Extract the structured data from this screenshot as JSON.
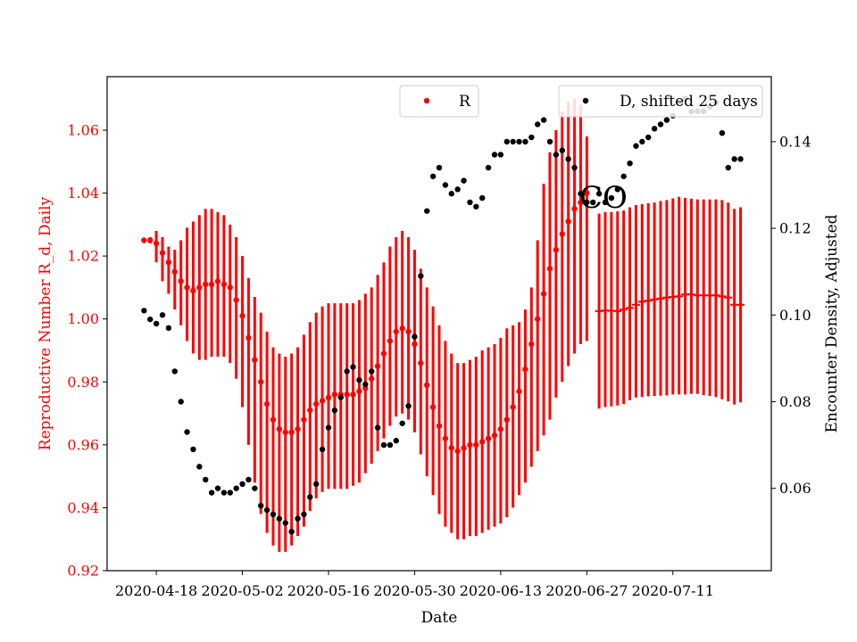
{
  "chart_data": {
    "type": "scatter",
    "xlabel": "Date",
    "ylabel_left": "Reproductive Number R_d, Daily",
    "ylabel_right": "Encounter Density, Adjusted",
    "annotation": "CO",
    "x_tick_labels": [
      "2020-04-18",
      "2020-05-02",
      "2020-05-16",
      "2020-05-30",
      "2020-06-13",
      "2020-06-27",
      "2020-07-11"
    ],
    "x_ticks": [
      "2020-04-18",
      "2020-05-02",
      "2020-05-16",
      "2020-05-30",
      "2020-06-13",
      "2020-06-27",
      "2020-07-11"
    ],
    "xlim": [
      "2020-04-10",
      "2020-07-27"
    ],
    "ylim_left": [
      0.92,
      1.077
    ],
    "yticks_left": [
      "0.92",
      "0.94",
      "0.96",
      "0.98",
      "1.00",
      "1.02",
      "1.04",
      "1.06"
    ],
    "ylim_right": [
      0.041,
      0.155
    ],
    "yticks_right": [
      "0.06",
      "0.08",
      "0.10",
      "0.12",
      "0.14"
    ],
    "colors": {
      "R": "#ff0000",
      "D": "#000000",
      "axis": "#000000"
    },
    "legend_placement": "top-right",
    "series": [
      {
        "name": "R",
        "axis": "left",
        "marker": "dot",
        "x": [
          "2020-04-16",
          "2020-04-17",
          "2020-04-18",
          "2020-04-19",
          "2020-04-20",
          "2020-04-21",
          "2020-04-22",
          "2020-04-23",
          "2020-04-24",
          "2020-04-25",
          "2020-04-26",
          "2020-04-27",
          "2020-04-28",
          "2020-04-29",
          "2020-04-30",
          "2020-05-01",
          "2020-05-02",
          "2020-05-03",
          "2020-05-04",
          "2020-05-05",
          "2020-05-06",
          "2020-05-07",
          "2020-05-08",
          "2020-05-09",
          "2020-05-10",
          "2020-05-11",
          "2020-05-12",
          "2020-05-13",
          "2020-05-14",
          "2020-05-15",
          "2020-05-16",
          "2020-05-17",
          "2020-05-18",
          "2020-05-19",
          "2020-05-20",
          "2020-05-21",
          "2020-05-22",
          "2020-05-23",
          "2020-05-24",
          "2020-05-25",
          "2020-05-26",
          "2020-05-27",
          "2020-05-28",
          "2020-05-29",
          "2020-05-30",
          "2020-05-31",
          "2020-06-01",
          "2020-06-02",
          "2020-06-03",
          "2020-06-04",
          "2020-06-05",
          "2020-06-06",
          "2020-06-07",
          "2020-06-08",
          "2020-06-09",
          "2020-06-10",
          "2020-06-11",
          "2020-06-12",
          "2020-06-13",
          "2020-06-14",
          "2020-06-15",
          "2020-06-16",
          "2020-06-17",
          "2020-06-18",
          "2020-06-19",
          "2020-06-20",
          "2020-06-21",
          "2020-06-22",
          "2020-06-23",
          "2020-06-24",
          "2020-06-25",
          "2020-06-26",
          "2020-06-27"
        ],
        "y": [
          1.025,
          1.025,
          1.024,
          1.021,
          1.018,
          1.015,
          1.012,
          1.01,
          1.009,
          1.01,
          1.011,
          1.011,
          1.012,
          1.011,
          1.01,
          1.006,
          1.001,
          0.994,
          0.987,
          0.98,
          0.973,
          0.968,
          0.965,
          0.964,
          0.964,
          0.965,
          0.968,
          0.971,
          0.973,
          0.974,
          0.975,
          0.976,
          0.976,
          0.976,
          0.976,
          0.977,
          0.978,
          0.981,
          0.985,
          0.989,
          0.993,
          0.996,
          0.997,
          0.996,
          0.992,
          0.986,
          0.979,
          0.972,
          0.966,
          0.962,
          0.959,
          0.958,
          0.959,
          0.96,
          0.96,
          0.961,
          0.962,
          0.963,
          0.965,
          0.968,
          0.972,
          0.977,
          0.984,
          0.992,
          1.0,
          1.008,
          1.016,
          1.022,
          1.027,
          1.031,
          1.035,
          1.037,
          1.04
        ],
        "err_low": [
          1.025,
          1.024,
          1.018,
          1.012,
          1.008,
          1.003,
          0.998,
          0.993,
          0.989,
          0.987,
          0.987,
          0.988,
          0.988,
          0.988,
          0.986,
          0.981,
          0.972,
          0.96,
          0.948,
          0.938,
          0.932,
          0.928,
          0.926,
          0.926,
          0.928,
          0.931,
          0.934,
          0.939,
          0.943,
          0.945,
          0.946,
          0.946,
          0.946,
          0.946,
          0.947,
          0.948,
          0.951,
          0.954,
          0.958,
          0.962,
          0.966,
          0.969,
          0.97,
          0.968,
          0.964,
          0.957,
          0.95,
          0.944,
          0.938,
          0.934,
          0.932,
          0.93,
          0.93,
          0.931,
          0.931,
          0.932,
          0.933,
          0.934,
          0.935,
          0.937,
          0.94,
          0.944,
          0.948,
          0.953,
          0.958,
          0.963,
          0.968,
          0.975,
          0.98,
          0.985,
          0.989,
          0.992,
          0.993
        ],
        "err_high": [
          1.025,
          1.026,
          1.028,
          1.026,
          1.023,
          1.022,
          1.025,
          1.029,
          1.031,
          1.033,
          1.035,
          1.035,
          1.034,
          1.033,
          1.03,
          1.026,
          1.02,
          1.013,
          1.007,
          1.002,
          0.996,
          0.991,
          0.989,
          0.988,
          0.989,
          0.991,
          0.995,
          0.999,
          1.002,
          1.004,
          1.005,
          1.005,
          1.005,
          1.005,
          1.005,
          1.006,
          1.008,
          1.01,
          1.014,
          1.018,
          1.023,
          1.026,
          1.028,
          1.026,
          1.022,
          1.016,
          1.01,
          1.004,
          0.998,
          0.993,
          0.989,
          0.986,
          0.986,
          0.987,
          0.988,
          0.99,
          0.991,
          0.992,
          0.994,
          0.997,
          0.998,
          0.999,
          1.003,
          1.01,
          1.025,
          1.043,
          1.053,
          1.06,
          1.066,
          1.069,
          1.07,
          1.068,
          1.058
        ]
      },
      {
        "name": "R",
        "axis": "left",
        "marker": "bar",
        "x": [
          "2020-06-29",
          "2020-06-30",
          "2020-07-01",
          "2020-07-02",
          "2020-07-03",
          "2020-07-04",
          "2020-07-05",
          "2020-07-06",
          "2020-07-07",
          "2020-07-08",
          "2020-07-09",
          "2020-07-10",
          "2020-07-11",
          "2020-07-12",
          "2020-07-13",
          "2020-07-14",
          "2020-07-15",
          "2020-07-16",
          "2020-07-17",
          "2020-07-18",
          "2020-07-19",
          "2020-07-20",
          "2020-07-21",
          "2020-07-22"
        ],
        "y": [
          1.0025,
          1.0027,
          1.0026,
          1.0025,
          1.003,
          1.0035,
          1.0045,
          1.0055,
          1.0058,
          1.0062,
          1.0065,
          1.0068,
          1.007,
          1.0072,
          1.0078,
          1.0078,
          1.0075,
          1.0075,
          1.0075,
          1.0075,
          1.0072,
          1.0068,
          1.0045,
          1.0045
        ],
        "err_low": [
          0.9715,
          0.972,
          0.9722,
          0.9725,
          0.973,
          0.9742,
          0.975,
          0.9752,
          0.9754,
          0.9755,
          0.9756,
          0.9757,
          0.976,
          0.976,
          0.976,
          0.9762,
          0.9762,
          0.9758,
          0.9755,
          0.9752,
          0.9745,
          0.9738,
          0.9728,
          0.9735
        ],
        "err_high": [
          1.0335,
          1.034,
          1.034,
          1.0342,
          1.0345,
          1.0355,
          1.0362,
          1.0365,
          1.0368,
          1.037,
          1.0375,
          1.0378,
          1.0383,
          1.0388,
          1.0385,
          1.0382,
          1.038,
          1.038,
          1.038,
          1.038,
          1.0378,
          1.037,
          1.035,
          1.0355
        ]
      },
      {
        "name": "D, shifted 25 days",
        "axis": "right",
        "marker": "dot",
        "x": [
          "2020-04-16",
          "2020-04-17",
          "2020-04-18",
          "2020-04-19",
          "2020-04-20",
          "2020-04-21",
          "2020-04-22",
          "2020-04-23",
          "2020-04-24",
          "2020-04-25",
          "2020-04-26",
          "2020-04-27",
          "2020-04-28",
          "2020-04-29",
          "2020-04-30",
          "2020-05-01",
          "2020-05-02",
          "2020-05-03",
          "2020-05-04",
          "2020-05-05",
          "2020-05-06",
          "2020-05-07",
          "2020-05-08",
          "2020-05-09",
          "2020-05-10",
          "2020-05-11",
          "2020-05-12",
          "2020-05-13",
          "2020-05-14",
          "2020-05-15",
          "2020-05-16",
          "2020-05-17",
          "2020-05-18",
          "2020-05-19",
          "2020-05-20",
          "2020-05-21",
          "2020-05-22",
          "2020-05-23",
          "2020-05-24",
          "2020-05-25",
          "2020-05-26",
          "2020-05-27",
          "2020-05-28",
          "2020-05-29",
          "2020-05-30",
          "2020-05-31",
          "2020-06-01",
          "2020-06-02",
          "2020-06-03",
          "2020-06-04",
          "2020-06-05",
          "2020-06-06",
          "2020-06-07",
          "2020-06-08",
          "2020-06-09",
          "2020-06-10",
          "2020-06-11",
          "2020-06-12",
          "2020-06-13",
          "2020-06-14",
          "2020-06-15",
          "2020-06-16",
          "2020-06-17",
          "2020-06-18",
          "2020-06-19",
          "2020-06-20",
          "2020-06-21",
          "2020-06-22",
          "2020-06-23",
          "2020-06-24",
          "2020-06-25",
          "2020-06-26",
          "2020-06-27",
          "2020-06-28",
          "2020-06-29",
          "2020-06-30",
          "2020-07-01",
          "2020-07-02",
          "2020-07-03",
          "2020-07-04",
          "2020-07-05",
          "2020-07-06",
          "2020-07-07",
          "2020-07-08",
          "2020-07-09",
          "2020-07-10",
          "2020-07-11",
          "2020-07-12",
          "2020-07-13",
          "2020-07-14",
          "2020-07-15",
          "2020-07-16",
          "2020-07-17",
          "2020-07-18",
          "2020-07-19",
          "2020-07-20",
          "2020-07-21",
          "2020-07-22"
        ],
        "y": [
          0.101,
          0.099,
          0.098,
          0.1,
          0.097,
          0.087,
          0.08,
          0.073,
          0.069,
          0.065,
          0.062,
          0.059,
          0.06,
          0.059,
          0.059,
          0.06,
          0.061,
          0.062,
          0.06,
          0.056,
          0.055,
          0.054,
          0.053,
          0.052,
          0.05,
          0.053,
          0.054,
          0.058,
          0.061,
          0.069,
          0.074,
          0.078,
          0.081,
          0.087,
          0.088,
          0.085,
          0.084,
          0.087,
          0.074,
          0.07,
          0.07,
          0.071,
          0.075,
          0.079,
          0.095,
          0.109,
          0.124,
          0.132,
          0.134,
          0.13,
          0.128,
          0.129,
          0.131,
          0.126,
          0.125,
          0.127,
          0.134,
          0.137,
          0.137,
          0.14,
          0.14,
          0.14,
          0.14,
          0.141,
          0.144,
          0.145,
          0.14,
          0.137,
          0.138,
          0.136,
          0.134,
          0.128,
          0.126,
          0.126,
          0.128,
          0.126,
          0.127,
          0.129,
          0.132,
          0.135,
          0.139,
          0.14,
          0.141,
          0.143,
          0.144,
          0.145,
          0.146,
          0.149,
          0.15,
          0.147,
          0.147,
          0.147,
          0.148,
          0.149,
          0.142,
          0.134,
          0.136,
          0.136
        ]
      }
    ]
  },
  "legend": {
    "r_label": "R",
    "d_label": "D, shifted 25 days"
  }
}
